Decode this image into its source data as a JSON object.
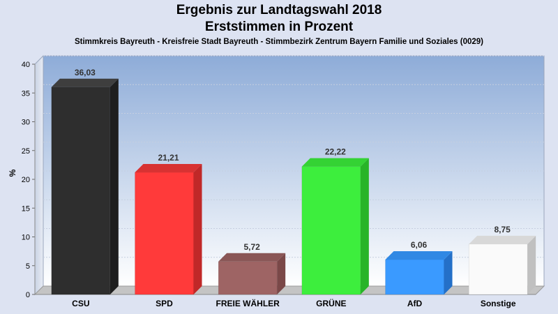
{
  "chart_data": {
    "type": "bar",
    "title": "Ergebnis zur Landtagswahl 2018",
    "subtitle": "Erststimmen in Prozent",
    "caption": "Stimmkreis Bayreuth - Kreisfreie Stadt Bayreuth - Stimmbezirk Zentrum Bayern Familie und Soziales (0029)",
    "ylabel": "%",
    "xlabel": "",
    "ylim": [
      0,
      40
    ],
    "yticks": [
      "0",
      "5",
      "10",
      "15",
      "20",
      "25",
      "30",
      "35",
      "40"
    ],
    "grid": true,
    "categories": [
      "CSU",
      "SPD",
      "FREIE WÄHLER",
      "GRÜNE",
      "AfD",
      "Sonstige"
    ],
    "values": [
      36.03,
      21.21,
      5.72,
      22.22,
      6.06,
      8.75
    ],
    "value_labels": [
      "36,03",
      "21,21",
      "5,72",
      "22,22",
      "6,06",
      "8,75"
    ],
    "colors": [
      "#2e2e2e",
      "#ff3a3a",
      "#9e6464",
      "#3dee3d",
      "#3a9aff",
      "#fafafa"
    ],
    "side_colors": [
      "#1e1e1e",
      "#c02828",
      "#7a4848",
      "#28b428",
      "#2470c8",
      "#c0c0c0"
    ],
    "top_colors": [
      "#3e3e3e",
      "#d83232",
      "#8a5656",
      "#34d234",
      "#3088e4",
      "#d8d8d8"
    ]
  }
}
